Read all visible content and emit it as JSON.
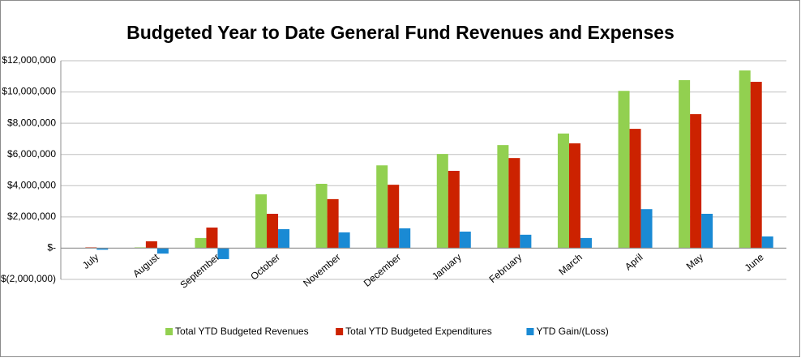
{
  "chart_data": {
    "type": "bar",
    "title": "Budgeted Year to Date General Fund Revenues and Expenses",
    "categories": [
      "July",
      "August",
      "September",
      "October",
      "November",
      "December",
      "January",
      "February",
      "March",
      "April",
      "May",
      "June"
    ],
    "series": [
      {
        "name": "Total YTD Budgeted Revenues",
        "color": "#92d050",
        "values": [
          20000,
          50000,
          650000,
          3450000,
          4120000,
          5300000,
          6030000,
          6600000,
          7340000,
          10070000,
          10760000,
          11380000
        ]
      },
      {
        "name": "Total YTD Budgeted Expenditures",
        "color": "#cc2200",
        "values": [
          50000,
          440000,
          1320000,
          2200000,
          3140000,
          4060000,
          4950000,
          5770000,
          6710000,
          7640000,
          8580000,
          10650000
        ]
      },
      {
        "name": "YTD Gain/(Loss)",
        "color": "#1a8ad4",
        "values": [
          -100000,
          -350000,
          -700000,
          1220000,
          1010000,
          1270000,
          1060000,
          860000,
          650000,
          2500000,
          2200000,
          750000
        ]
      }
    ],
    "ylim": [
      -2000000,
      12000000
    ],
    "yticks": [
      {
        "value": -2000000,
        "label": "$(2,000,000)"
      },
      {
        "value": 0,
        "label": "$-"
      },
      {
        "value": 2000000,
        "label": "$2,000,000"
      },
      {
        "value": 4000000,
        "label": "$4,000,000"
      },
      {
        "value": 6000000,
        "label": "$6,000,000"
      },
      {
        "value": 8000000,
        "label": "$8,000,000"
      },
      {
        "value": 10000000,
        "label": "$10,000,000"
      },
      {
        "value": 12000000,
        "label": "$12,000,000"
      }
    ],
    "grid": true,
    "legend": "bottom"
  }
}
